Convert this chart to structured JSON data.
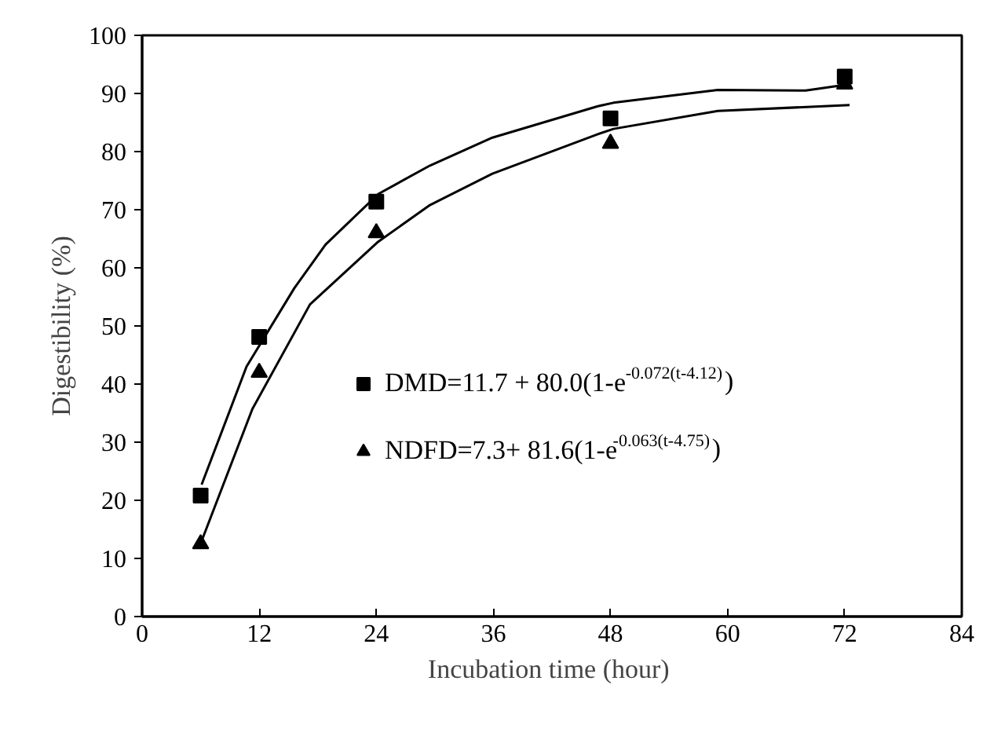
{
  "chart_data": {
    "type": "scatter",
    "xlabel": "Incubation  time (hour)",
    "ylabel": "Digestibility (%)",
    "xlim": [
      0,
      84
    ],
    "xticks": [
      0,
      12,
      24,
      36,
      48,
      60,
      72,
      84
    ],
    "ylim": [
      0,
      100
    ],
    "yticks": [
      0,
      10,
      20,
      30,
      40,
      50,
      60,
      70,
      80,
      90,
      100
    ],
    "grid": false,
    "legend": "right",
    "series": [
      {
        "name": "DMD=11.7 + 80.0(1-e$^{-0.072(t-4.12)}$)",
        "color": "#000000",
        "marker": "square",
        "x": [
          6,
          12,
          24,
          48,
          72
        ],
        "values": [
          20.8,
          48.1,
          71.4,
          85.7,
          92.9
        ]
      },
      {
        "name": "NDFD=7.3+ 81.6(1-e$^{-0.063(t-4.75)}$)",
        "color": "#000000",
        "marker": "triangle",
        "x": [
          6,
          12,
          24,
          48,
          72
        ],
        "values": [
          12.5,
          42,
          66,
          81.4,
          91.6
        ]
      },
      {
        "type": "line",
        "color": "#000000",
        "x": [
          6.1,
          10.7,
          15.6,
          18.8,
          24.2,
          29.5,
          35.9,
          46.7,
          48.3,
          59,
          68,
          72.5
        ],
        "values": [
          22.7,
          43,
          56.5,
          64,
          72.7,
          77.6,
          82.4,
          87.8,
          88.4,
          90.6,
          90.5,
          91.6
        ]
      },
      {
        "type": "line",
        "color": "#000000",
        "x": [
          6.1,
          11.3,
          17.2,
          24.2,
          29.5,
          35.9,
          46.7,
          48.3,
          59,
          72.5
        ],
        "values": [
          13,
          35.7,
          53.7,
          64.5,
          70.8,
          76.2,
          83,
          83.9,
          87,
          88
        ]
      }
    ]
  }
}
